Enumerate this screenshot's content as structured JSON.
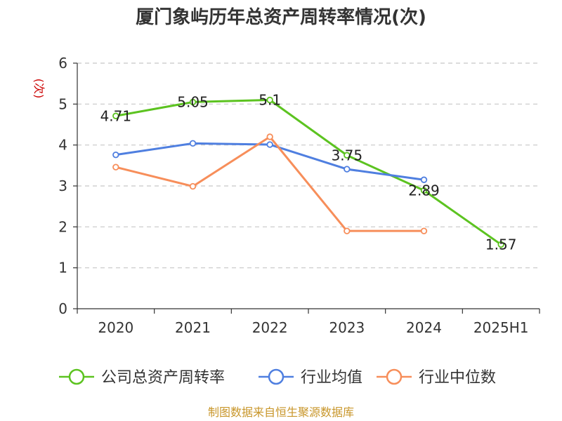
{
  "chart_data": {
    "type": "line",
    "title": "厦门象屿历年总资产周转率情况(次)",
    "ylabel": "(次)",
    "xlabel": "",
    "categories": [
      "2020",
      "2021",
      "2022",
      "2023",
      "2024",
      "2025H1"
    ],
    "ylim": [
      0,
      6
    ],
    "yticks": [
      0,
      1,
      2,
      3,
      4,
      5,
      6
    ],
    "grid": true,
    "legend_position": "bottom",
    "series": [
      {
        "name": "公司总资产周转率",
        "color": "#5cc320",
        "values": [
          4.71,
          5.05,
          5.1,
          3.75,
          2.89,
          1.57
        ],
        "labels": [
          "4.71",
          "5.05",
          "5.1",
          "3.75",
          "2.89",
          "1.57"
        ]
      },
      {
        "name": "行业均值",
        "color": "#4f7fe0",
        "values": [
          3.76,
          4.04,
          4.01,
          3.41,
          3.15,
          null
        ]
      },
      {
        "name": "行业中位数",
        "color": "#f78e5a",
        "values": [
          3.46,
          2.99,
          4.2,
          1.9,
          1.9,
          null
        ]
      }
    ],
    "source": "制图数据来自恒生聚源数据库"
  }
}
